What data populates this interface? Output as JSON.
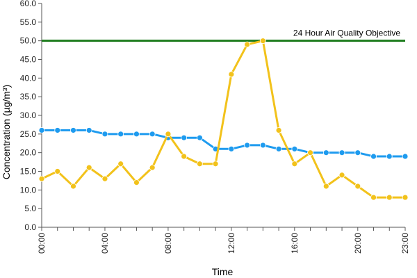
{
  "chart_data": {
    "type": "line",
    "xlabel": "Time",
    "ylabel": "Concentration (µg/m³)",
    "ylim": [
      0,
      60
    ],
    "yticks": [
      "0.0",
      "5.0",
      "10.0",
      "15.0",
      "20.0",
      "25.0",
      "30.0",
      "35.0",
      "40.0",
      "45.0",
      "50.0",
      "55.0",
      "60.0"
    ],
    "x": [
      "00:00",
      "01:00",
      "02:00",
      "03:00",
      "04:00",
      "05:00",
      "06:00",
      "07:00",
      "08:00",
      "09:00",
      "10:00",
      "11:00",
      "12:00",
      "13:00",
      "14:00",
      "15:00",
      "16:00",
      "17:00",
      "18:00",
      "19:00",
      "20:00",
      "21:00",
      "22:00",
      "23:00"
    ],
    "xtick_labels": [
      "00:00",
      "04:00",
      "08:00",
      "12:00",
      "16:00",
      "20:00",
      "23:00"
    ],
    "grid": false,
    "series": [
      {
        "color": "#1e9bef",
        "values": [
          26,
          26,
          26,
          26,
          25,
          25,
          25,
          25,
          24,
          24,
          24,
          21,
          21,
          22,
          22,
          21,
          21,
          20,
          20,
          20,
          20,
          19,
          19,
          19
        ]
      },
      {
        "color": "#f2c21b",
        "values": [
          13,
          15,
          11,
          16,
          13,
          17,
          12,
          16,
          25,
          19,
          17,
          17,
          41,
          49,
          50,
          26,
          17,
          20,
          11,
          14,
          11,
          8,
          8,
          8
        ]
      }
    ],
    "reference_line": {
      "value": 50,
      "label": "24 Hour Air Quality Objective",
      "color": "#1a7a1a"
    }
  }
}
